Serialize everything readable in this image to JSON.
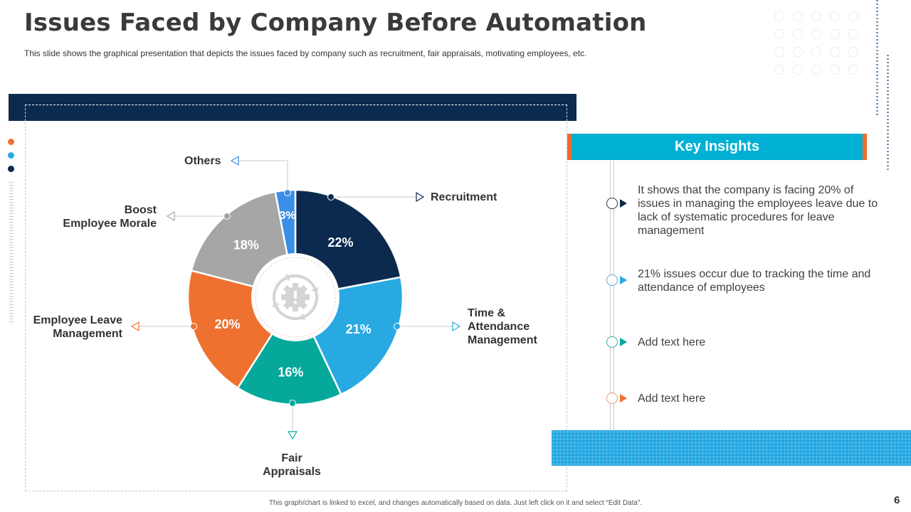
{
  "header": {
    "title": "Issues Faced by Company Before Automation",
    "subtitle": "This slide shows the graphical presentation that depicts the issues faced by company such as recruitment, fair appraisals, motivating employees, etc."
  },
  "chart_data": {
    "type": "pie",
    "variant": "donut",
    "title": "",
    "center_icon": "gear-exclamation-cycle-icon",
    "slices": [
      {
        "label": "Recruitment",
        "value": 22,
        "display": "22%",
        "color": "#0b2a4e"
      },
      {
        "label": "Time & Attendance Management",
        "lines": [
          "Time &",
          "Attendance",
          "Management"
        ],
        "value": 21,
        "display": "21%",
        "color": "#29a9e2"
      },
      {
        "label": "Fair Appraisals",
        "lines": [
          "Fair",
          "Appraisals"
        ],
        "value": 16,
        "display": "16%",
        "color": "#06a89b"
      },
      {
        "label": "Employee Leave Management",
        "lines": [
          "Employee Leave",
          "Management"
        ],
        "value": 20,
        "display": "20%",
        "color": "#ee7130"
      },
      {
        "label": "Boost Employee Morale",
        "lines": [
          "Boost",
          "Employee Morale"
        ],
        "value": 18,
        "display": "18%",
        "color": "#a6a6a6"
      },
      {
        "label": "Others",
        "value": 3,
        "display": "3%",
        "color": "#3a8ee6"
      }
    ]
  },
  "insights": {
    "header": "Key Insights",
    "items": [
      {
        "text": "It shows that the company is facing 20% of issues in managing the employees leave due to lack of systematic procedures for leave management",
        "color": "#0b2a4e",
        "ring": "#333333"
      },
      {
        "text": "21% issues occur due to tracking the time and attendance of employees",
        "color": "#29a9e2",
        "ring": "#5aa9cf"
      },
      {
        "text": "Add text here",
        "color": "#06a89b",
        "ring": "#4aa7a0"
      },
      {
        "text": "Add text here",
        "color": "#ee7130",
        "ring": "#e0a07a"
      }
    ]
  },
  "side_dots": [
    "#ee7130",
    "#29a9e2",
    "#0b2a4e"
  ],
  "footer": {
    "note": "This graph/chart is linked to excel, and changes automatically based on data. Just left click on it and select “Edit Data”.",
    "page_number": "6"
  }
}
